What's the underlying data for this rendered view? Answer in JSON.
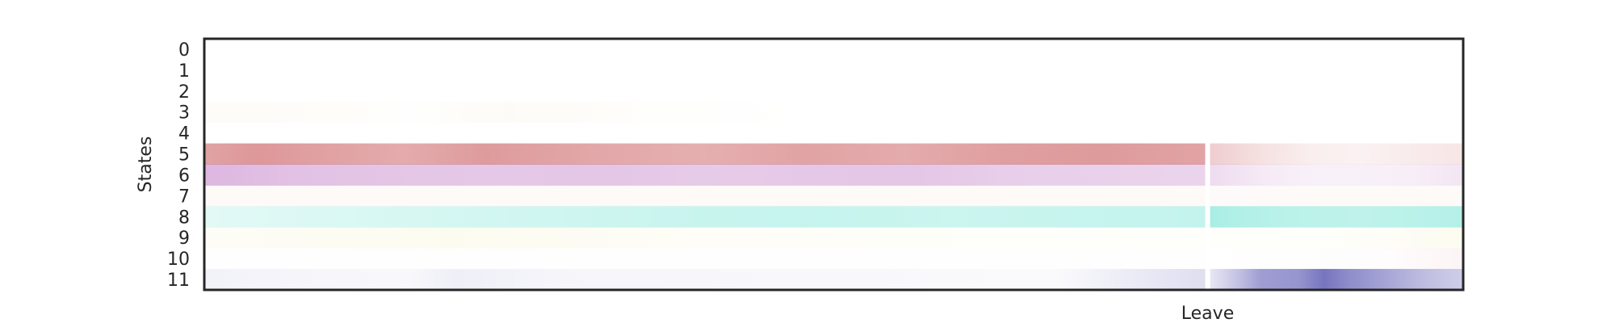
{
  "chart_data": {
    "type": "heatmap",
    "ylabel": "States",
    "xlabel": "",
    "y_categories": [
      "0",
      "1",
      "2",
      "3",
      "4",
      "5",
      "6",
      "7",
      "8",
      "9",
      "10",
      "11"
    ],
    "x_tick_labels": [
      {
        "label": "Leave",
        "at_fraction": 0.797
      }
    ],
    "grid": false,
    "legend": "none",
    "rows": [
      {
        "state": "0",
        "color": "#f4ead8",
        "pre": [
          [
            0,
            0.0
          ],
          [
            1,
            0.0
          ]
        ],
        "post": [
          [
            0,
            0.0
          ],
          [
            1,
            0.0
          ]
        ]
      },
      {
        "state": "1",
        "color": "#f4ead8",
        "pre": [
          [
            0,
            0.0
          ],
          [
            1,
            0.0
          ]
        ],
        "post": [
          [
            0,
            0.0
          ],
          [
            1,
            0.0
          ]
        ]
      },
      {
        "state": "2",
        "color": "#f4ead8",
        "pre": [
          [
            0,
            0.0
          ],
          [
            1,
            0.0
          ]
        ],
        "post": [
          [
            0,
            0.0
          ],
          [
            1,
            0.0
          ]
        ]
      },
      {
        "state": "3",
        "color": "#efe6c8",
        "pre": [
          [
            0,
            0.12
          ],
          [
            0.15,
            0.08
          ],
          [
            0.2,
            0.02
          ],
          [
            0.3,
            0.15
          ],
          [
            0.45,
            0.05
          ],
          [
            0.6,
            0.0
          ],
          [
            1,
            0.0
          ]
        ],
        "post": [
          [
            0,
            0.0
          ],
          [
            1,
            0.0
          ]
        ]
      },
      {
        "state": "4",
        "color": "#f4ead8",
        "pre": [
          [
            0,
            0.0
          ],
          [
            1,
            0.0
          ]
        ],
        "post": [
          [
            0,
            0.0
          ],
          [
            1,
            0.0
          ]
        ]
      },
      {
        "state": "5",
        "color": "#c8585a",
        "pre": [
          [
            0,
            0.55
          ],
          [
            0.05,
            0.62
          ],
          [
            0.1,
            0.58
          ],
          [
            0.2,
            0.5
          ],
          [
            0.28,
            0.6
          ],
          [
            0.4,
            0.52
          ],
          [
            0.5,
            0.48
          ],
          [
            0.6,
            0.55
          ],
          [
            0.7,
            0.5
          ],
          [
            0.8,
            0.58
          ],
          [
            0.9,
            0.6
          ],
          [
            1,
            0.55
          ]
        ],
        "post": [
          [
            0,
            0.3
          ],
          [
            0.2,
            0.18
          ],
          [
            0.4,
            0.1
          ],
          [
            0.6,
            0.08
          ],
          [
            0.8,
            0.12
          ],
          [
            1,
            0.15
          ]
        ]
      },
      {
        "state": "6",
        "color": "#bb6fc0",
        "pre": [
          [
            0,
            0.5
          ],
          [
            0.1,
            0.42
          ],
          [
            0.2,
            0.4
          ],
          [
            0.3,
            0.38
          ],
          [
            0.4,
            0.4
          ],
          [
            0.5,
            0.36
          ],
          [
            0.6,
            0.38
          ],
          [
            0.7,
            0.4
          ],
          [
            0.8,
            0.34
          ],
          [
            0.9,
            0.32
          ],
          [
            1,
            0.3
          ]
        ],
        "post": [
          [
            0,
            0.25
          ],
          [
            0.2,
            0.15
          ],
          [
            0.4,
            0.1
          ],
          [
            0.6,
            0.1
          ],
          [
            0.8,
            0.12
          ],
          [
            1,
            0.18
          ]
        ]
      },
      {
        "state": "7",
        "color": "#e9c9b6",
        "pre": [
          [
            0,
            0.1
          ],
          [
            1,
            0.1
          ]
        ],
        "post": [
          [
            0,
            0.08
          ],
          [
            1,
            0.1
          ]
        ]
      },
      {
        "state": "8",
        "color": "#6fe3d3",
        "pre": [
          [
            0,
            0.2
          ],
          [
            0.2,
            0.28
          ],
          [
            0.4,
            0.35
          ],
          [
            0.5,
            0.38
          ],
          [
            0.6,
            0.4
          ],
          [
            0.75,
            0.36
          ],
          [
            0.9,
            0.4
          ],
          [
            1,
            0.42
          ]
        ],
        "post": [
          [
            0,
            0.6
          ],
          [
            0.1,
            0.55
          ],
          [
            0.3,
            0.48
          ],
          [
            0.6,
            0.45
          ],
          [
            0.8,
            0.48
          ],
          [
            1,
            0.52
          ]
        ]
      },
      {
        "state": "9",
        "color": "#f2ecb4",
        "pre": [
          [
            0,
            0.12
          ],
          [
            0.25,
            0.2
          ],
          [
            0.5,
            0.1
          ],
          [
            1,
            0.05
          ]
        ],
        "post": [
          [
            0,
            0.05
          ],
          [
            0.6,
            0.08
          ],
          [
            1,
            0.2
          ]
        ]
      },
      {
        "state": "10",
        "color": "#f0c8d0",
        "pre": [
          [
            0,
            0.02
          ],
          [
            1,
            0.02
          ]
        ],
        "post": [
          [
            0,
            0.0
          ],
          [
            0.7,
            0.05
          ],
          [
            1,
            0.2
          ]
        ]
      },
      {
        "state": "11",
        "color": "#5f5cb4",
        "pre": [
          [
            0,
            0.08
          ],
          [
            0.2,
            0.04
          ],
          [
            0.25,
            0.1
          ],
          [
            0.35,
            0.06
          ],
          [
            0.5,
            0.05
          ],
          [
            0.7,
            0.04
          ],
          [
            0.85,
            0.03
          ],
          [
            0.95,
            0.15
          ],
          [
            1,
            0.2
          ]
        ],
        "post": [
          [
            0,
            0.15
          ],
          [
            0.1,
            0.35
          ],
          [
            0.2,
            0.6
          ],
          [
            0.35,
            0.65
          ],
          [
            0.45,
            0.85
          ],
          [
            0.55,
            0.7
          ],
          [
            0.7,
            0.55
          ],
          [
            0.85,
            0.4
          ],
          [
            1,
            0.3
          ]
        ]
      }
    ]
  }
}
